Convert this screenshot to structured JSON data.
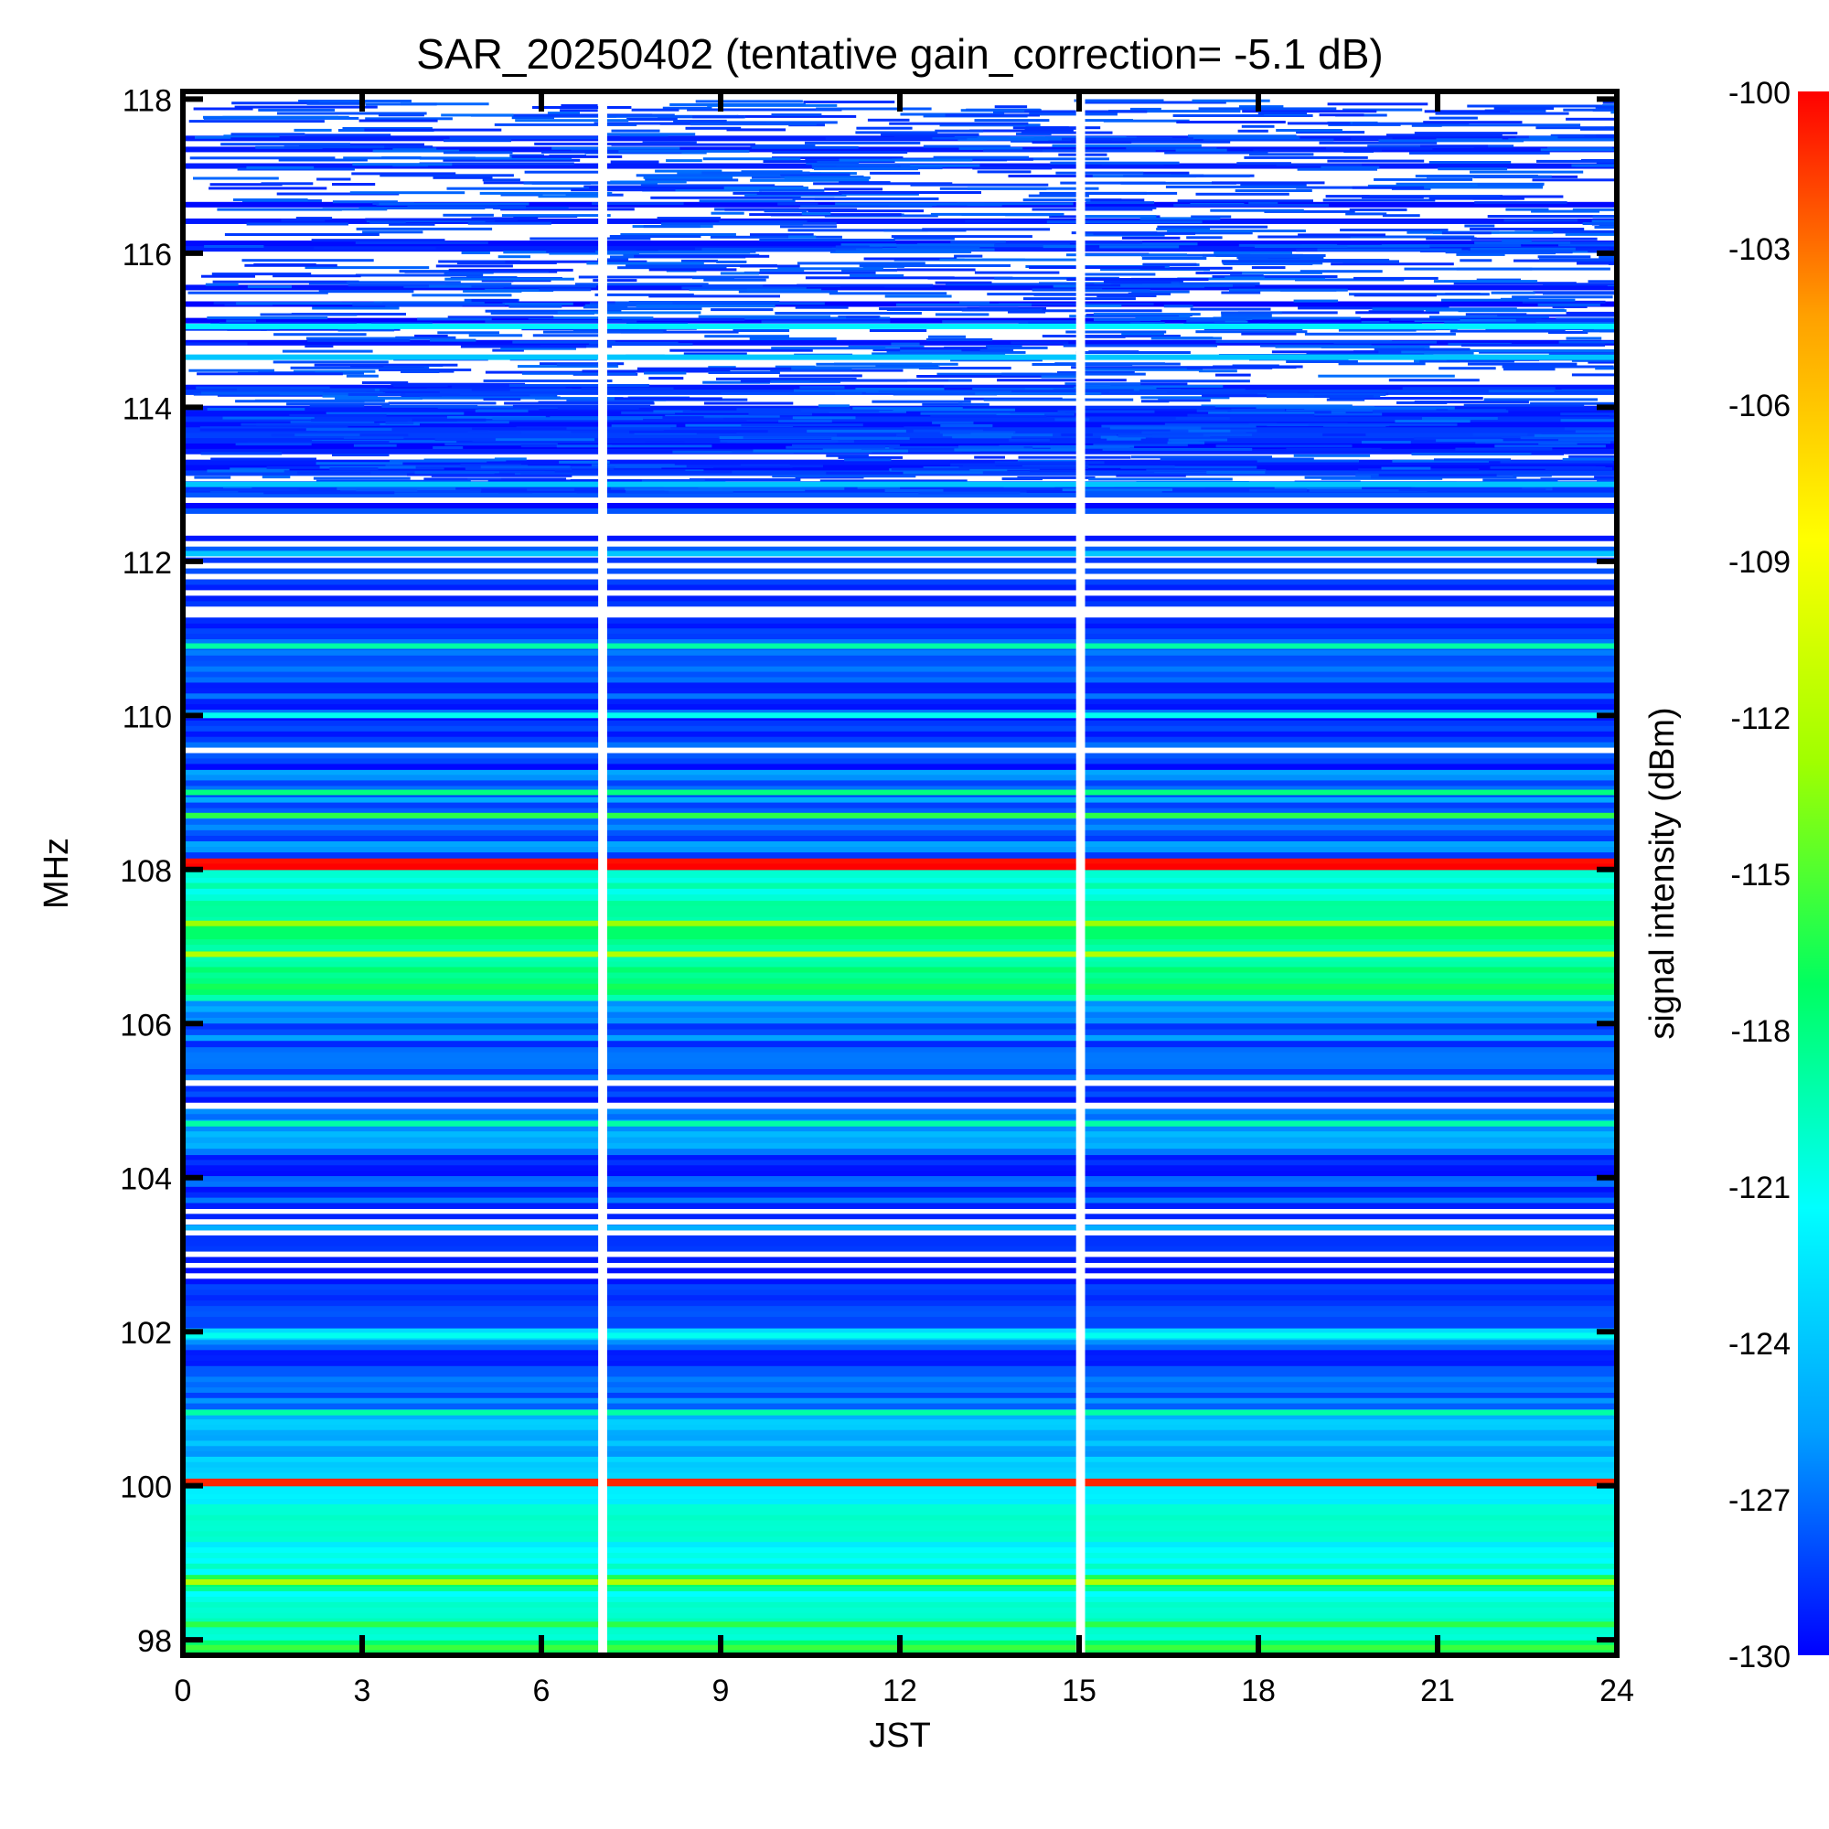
{
  "chart_data": {
    "type": "heatmap",
    "title": "SAR_20250402 (tentative gain_correction= -5.1 dB)",
    "xlabel": "JST",
    "ylabel": "MHz",
    "colorbar_label": "signal intensity (dBm)",
    "xlim": [
      0,
      24
    ],
    "ylim": [
      97.8,
      118.1
    ],
    "clim": [
      -130,
      -100
    ],
    "x_ticks": [
      "0",
      "3",
      "6",
      "9",
      "12",
      "15",
      "18",
      "21",
      "24"
    ],
    "y_ticks": [
      "98",
      "100",
      "102",
      "104",
      "106",
      "108",
      "110",
      "112",
      "114",
      "116",
      "118"
    ],
    "colorbar_ticks": [
      "-100",
      "-103",
      "-106",
      "-109",
      "-112",
      "-115",
      "-118",
      "-121",
      "-124",
      "-127",
      "-130"
    ],
    "colormap": [
      "#0000ff",
      "#00a0ff",
      "#00ffff",
      "#00ff60",
      "#a0ff00",
      "#ffff00",
      "#ffa000",
      "#ff0000"
    ],
    "data_gaps_jst": [
      [
        6.95,
        7.1
      ],
      [
        14.95,
        15.1
      ]
    ],
    "frequency_bands": [
      {
        "from": 97.8,
        "to": 98.0,
        "dbm": -117
      },
      {
        "from": 98.0,
        "to": 98.7,
        "dbm": -120
      },
      {
        "from": 98.7,
        "to": 98.85,
        "dbm": -116
      },
      {
        "from": 98.85,
        "to": 99.9,
        "dbm": -121
      },
      {
        "from": 99.9,
        "to": 100.0,
        "dbm": -123
      },
      {
        "from": 100.0,
        "to": 100.1,
        "dbm": -100
      },
      {
        "from": 100.1,
        "to": 101.0,
        "dbm": -124.5
      },
      {
        "from": 101.0,
        "to": 101.9,
        "dbm": -127.5
      },
      {
        "from": 101.9,
        "to": 102.05,
        "dbm": -124
      },
      {
        "from": 102.05,
        "to": 102.9,
        "dbm": -129
      },
      {
        "from": 102.9,
        "to": 103.6,
        "dbm": -130
      },
      {
        "from": 103.6,
        "to": 104.3,
        "dbm": -128
      },
      {
        "from": 104.3,
        "to": 104.9,
        "dbm": -126
      },
      {
        "from": 104.9,
        "to": 105.7,
        "dbm": -128.5
      },
      {
        "from": 105.7,
        "to": 106.3,
        "dbm": -127
      },
      {
        "from": 106.3,
        "to": 107.6,
        "dbm": -118
      },
      {
        "from": 107.6,
        "to": 107.9,
        "dbm": -120
      },
      {
        "from": 107.9,
        "to": 108.0,
        "dbm": -121
      },
      {
        "from": 108.0,
        "to": 108.15,
        "dbm": -100
      },
      {
        "from": 108.15,
        "to": 109.3,
        "dbm": -127
      },
      {
        "from": 109.3,
        "to": 111.2,
        "dbm": -128.5
      },
      {
        "from": 111.2,
        "to": 112.9,
        "dbm": -129.5
      },
      {
        "from": 112.9,
        "to": 114.3,
        "dbm": -130
      },
      {
        "from": 114.3,
        "to": 118.1,
        "dbm": -131
      }
    ],
    "steady_lines": [
      {
        "mhz": 114.65,
        "dbm": -124
      },
      {
        "mhz": 115.05,
        "dbm": -122
      },
      {
        "mhz": 113.0,
        "dbm": -124
      },
      {
        "mhz": 112.1,
        "dbm": -124
      },
      {
        "mhz": 110.9,
        "dbm": -119
      },
      {
        "mhz": 110.0,
        "dbm": -121
      },
      {
        "mhz": 109.0,
        "dbm": -118
      },
      {
        "mhz": 108.7,
        "dbm": -116
      },
      {
        "mhz": 106.9,
        "dbm": -112
      },
      {
        "mhz": 107.3,
        "dbm": -113
      },
      {
        "mhz": 104.7,
        "dbm": -119
      },
      {
        "mhz": 103.35,
        "dbm": -125
      },
      {
        "mhz": 101.95,
        "dbm": -121
      },
      {
        "mhz": 100.95,
        "dbm": -119
      },
      {
        "mhz": 98.75,
        "dbm": -112
      },
      {
        "mhz": 98.2,
        "dbm": -116
      }
    ]
  }
}
